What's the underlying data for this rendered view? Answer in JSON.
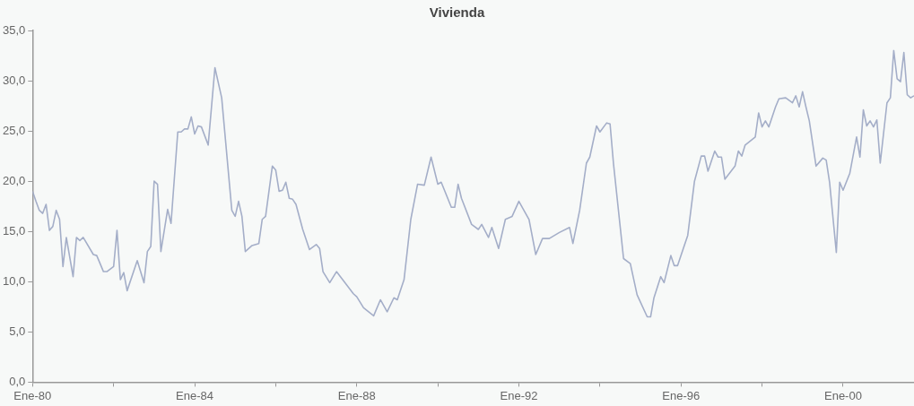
{
  "chart_data": {
    "type": "line",
    "title": "Vivienda",
    "x": [
      "1980-01",
      "1980-02",
      "1980-03",
      "1980-04",
      "1980-05",
      "1980-06",
      "1980-07",
      "1980-08",
      "1980-09",
      "1980-10",
      "1980-11",
      "1981-01",
      "1981-02",
      "1981-03",
      "1981-04",
      "1981-07",
      "1981-08",
      "1981-10",
      "1981-11",
      "1982-01",
      "1982-02",
      "1982-03",
      "1982-04",
      "1982-05",
      "1982-08",
      "1982-10",
      "1982-11",
      "1982-12",
      "1983-01",
      "1983-02",
      "1983-03",
      "1983-05",
      "1983-06",
      "1983-08",
      "1983-09",
      "1983-10",
      "1983-11",
      "1983-12",
      "1984-01",
      "1984-02",
      "1984-03",
      "1984-05",
      "1984-07",
      "1984-09",
      "1984-12",
      "1985-01",
      "1985-02",
      "1985-03",
      "1985-04",
      "1985-06",
      "1985-08",
      "1985-09",
      "1985-10",
      "1985-12",
      "1986-01",
      "1986-02",
      "1986-03",
      "1986-04",
      "1986-05",
      "1986-06",
      "1986-07",
      "1986-09",
      "1986-11",
      "1987-01",
      "1987-02",
      "1987-03",
      "1987-05",
      "1987-07",
      "1987-12",
      "1988-01",
      "1988-03",
      "1988-06",
      "1988-08",
      "1988-10",
      "1988-12",
      "1989-01",
      "1989-03",
      "1989-05",
      "1989-07",
      "1989-09",
      "1989-11",
      "1990-01",
      "1990-02",
      "1990-05",
      "1990-06",
      "1990-07",
      "1990-08",
      "1990-11",
      "1991-01",
      "1991-02",
      "1991-04",
      "1991-05",
      "1991-07",
      "1991-09",
      "1991-11",
      "1992-01",
      "1992-04",
      "1992-06",
      "1992-08",
      "1992-10",
      "1993-01",
      "1993-04",
      "1993-05",
      "1993-07",
      "1993-09",
      "1993-10",
      "1993-12",
      "1994-01",
      "1994-03",
      "1994-04",
      "1994-05",
      "1994-08",
      "1994-10",
      "1994-12",
      "1995-03",
      "1995-04",
      "1995-05",
      "1995-07",
      "1995-08",
      "1995-10",
      "1995-11",
      "1995-12",
      "1996-03",
      "1996-05",
      "1996-07",
      "1996-08",
      "1996-09",
      "1996-11",
      "1996-12",
      "1997-01",
      "1997-02",
      "1997-05",
      "1997-06",
      "1997-07",
      "1997-08",
      "1997-11",
      "1997-12",
      "1998-01",
      "1998-02",
      "1998-03",
      "1998-05",
      "1998-06",
      "1998-08",
      "1998-10",
      "1998-11",
      "1998-12",
      "1999-01",
      "1999-02",
      "1999-03",
      "1999-05",
      "1999-07",
      "1999-08",
      "1999-09",
      "1999-11",
      "1999-12",
      "2000-01",
      "2000-03",
      "2000-05",
      "2000-06",
      "2000-07",
      "2000-08",
      "2000-09",
      "2000-10",
      "2000-11",
      "2000-12",
      "2001-02",
      "2001-03",
      "2001-04",
      "2001-05",
      "2001-06",
      "2001-07",
      "2001-08",
      "2001-09",
      "2001-10"
    ],
    "series": [
      {
        "color": "#a4aec8",
        "values": [
          19.0,
          18.0,
          17.1,
          16.8,
          17.7,
          15.1,
          15.5,
          17.1,
          16.2,
          11.5,
          14.4,
          10.5,
          14.4,
          14.1,
          14.4,
          12.7,
          12.6,
          11.0,
          11.0,
          11.5,
          15.1,
          10.2,
          10.9,
          9.1,
          12.1,
          9.9,
          13.0,
          13.5,
          20.0,
          19.7,
          13.0,
          17.2,
          15.8,
          24.9,
          24.9,
          25.2,
          25.2,
          26.4,
          24.7,
          25.5,
          25.4,
          23.6,
          31.3,
          28.3,
          17.1,
          16.5,
          18.0,
          16.5,
          13.0,
          13.6,
          13.8,
          16.2,
          16.5,
          21.5,
          21.1,
          19.0,
          19.1,
          19.9,
          18.3,
          18.2,
          17.7,
          15.2,
          13.2,
          13.7,
          13.3,
          11.0,
          9.9,
          11.0,
          8.8,
          8.5,
          7.4,
          6.6,
          8.2,
          7.0,
          8.4,
          8.2,
          10.2,
          16.2,
          19.7,
          19.6,
          22.4,
          19.7,
          19.9,
          17.4,
          17.4,
          19.7,
          18.3,
          15.7,
          15.2,
          15.7,
          14.4,
          15.4,
          13.3,
          16.2,
          16.5,
          18.0,
          16.2,
          12.7,
          14.3,
          14.3,
          14.9,
          15.4,
          13.8,
          17.1,
          21.8,
          22.4,
          25.5,
          24.9,
          25.8,
          25.7,
          21.8,
          12.3,
          11.8,
          8.7,
          6.5,
          6.5,
          8.4,
          10.5,
          9.9,
          12.6,
          11.6,
          11.6,
          14.6,
          20.0,
          22.5,
          22.5,
          21.0,
          23.0,
          22.4,
          22.4,
          20.2,
          21.5,
          23.0,
          22.5,
          23.6,
          24.4,
          26.8,
          25.4,
          26.0,
          25.4,
          27.4,
          28.2,
          28.3,
          27.8,
          28.5,
          27.4,
          28.9,
          27.4,
          26.0,
          21.5,
          22.3,
          22.1,
          19.9,
          12.9,
          19.9,
          19.1,
          20.8,
          24.4,
          22.4,
          27.1,
          25.5,
          26.0,
          25.4,
          26.1,
          21.8,
          27.8,
          28.3,
          33.0,
          30.2,
          29.9,
          32.8,
          28.6,
          28.3,
          28.5
        ]
      }
    ],
    "xlim": [
      "1980-01",
      "2001-10"
    ],
    "xticks": [
      {
        "value": "1980-01",
        "label": "Ene-80"
      },
      {
        "value": "1982-01",
        "label": null
      },
      {
        "value": "1984-01",
        "label": "Ene-84"
      },
      {
        "value": "1986-01",
        "label": null
      },
      {
        "value": "1988-01",
        "label": "Ene-88"
      },
      {
        "value": "1990-01",
        "label": null
      },
      {
        "value": "1992-01",
        "label": "Ene-92"
      },
      {
        "value": "1994-01",
        "label": null
      },
      {
        "value": "1996-01",
        "label": "Ene-96"
      },
      {
        "value": "1998-01",
        "label": null
      },
      {
        "value": "2000-01",
        "label": "Ene-00"
      }
    ],
    "ylim": [
      0,
      35
    ],
    "yticks": [
      {
        "value": 0,
        "label": "0,0"
      },
      {
        "value": 5,
        "label": "5,0"
      },
      {
        "value": 10,
        "label": "10,0"
      },
      {
        "value": 15,
        "label": "15,0"
      },
      {
        "value": 20,
        "label": "20,0"
      },
      {
        "value": 25,
        "label": "25,0"
      },
      {
        "value": 30,
        "label": "30,0"
      },
      {
        "value": 35,
        "label": "35,0"
      }
    ],
    "grid": false,
    "legend": false,
    "marker": "none",
    "line_style": "solid"
  }
}
